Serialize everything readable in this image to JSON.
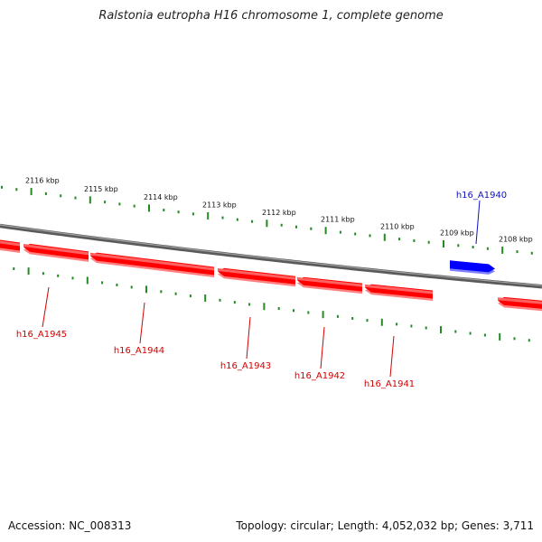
{
  "title": "Ralstonia eutropha H16 chromosome 1, complete genome",
  "footer": {
    "accession": "Accession: NC_008313",
    "summary": "Topology: circular; Length: 4,052,032 bp; Genes: 3,711"
  },
  "colors": {
    "backbone": "#808080",
    "forward_gene": "#ff0000",
    "reverse_gene": "#0000ff",
    "ticks": "#228b22",
    "red_label": "#d40000",
    "blue_label": "#1010c0"
  },
  "scale_labels": [
    "2116 kbp",
    "2115 kbp",
    "2114 kbp",
    "2113 kbp",
    "2112 kbp",
    "2111 kbp",
    "2110 kbp",
    "2109 kbp",
    "2108 kbp"
  ],
  "genes": [
    {
      "name": "h16_A1945",
      "strand": "minus"
    },
    {
      "name": "h16_A1944",
      "strand": "minus"
    },
    {
      "name": "h16_A1943",
      "strand": "minus"
    },
    {
      "name": "h16_A1942",
      "strand": "minus"
    },
    {
      "name": "h16_A1941",
      "strand": "minus"
    },
    {
      "name": "h16_A1940",
      "strand": "plus"
    }
  ]
}
